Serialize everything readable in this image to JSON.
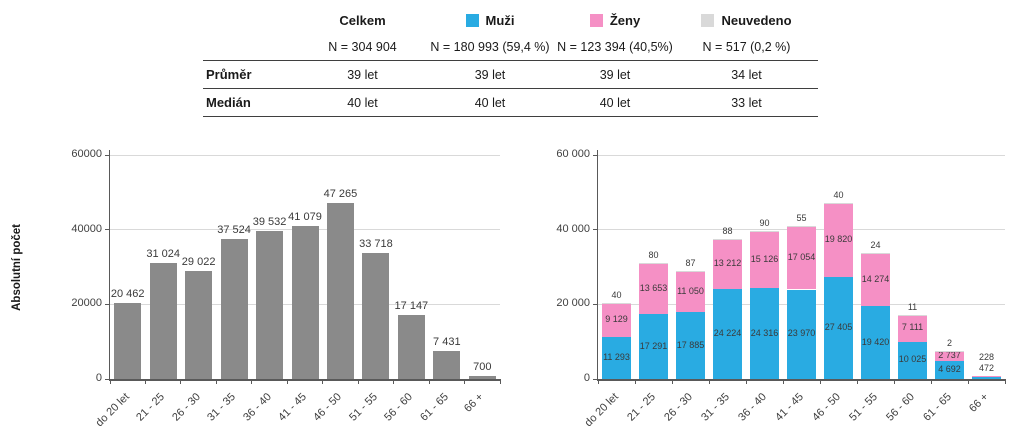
{
  "colors": {
    "muzi": "#29ABE2",
    "zeny": "#F590C5",
    "neuvedeno": "#D9D9D9",
    "total_gray": "#8A8A8A"
  },
  "table": {
    "col_headers": [
      {
        "label": "Celkem",
        "swatch": null
      },
      {
        "label": "Muži",
        "swatch": "#29ABE2"
      },
      {
        "label": "Ženy",
        "swatch": "#F590C5"
      },
      {
        "label": "Neuvedeno",
        "swatch": "#D9D9D9"
      }
    ],
    "n_row": [
      "N = 304 904",
      "N = 180 993 (59,4 %)",
      "N = 123 394 (40,5%)",
      "N = 517 (0,2 %)"
    ],
    "rows": [
      {
        "label": "Průměr",
        "values": [
          "39 let",
          "39 let",
          "39 let",
          "34 let"
        ]
      },
      {
        "label": "Medián",
        "values": [
          "40 let",
          "40 let",
          "40 let",
          "33 let"
        ]
      }
    ]
  },
  "chart_data": [
    {
      "type": "bar",
      "title": "",
      "ylabel": "Absolutní počet",
      "xlabel": "",
      "categories": [
        "do 20 let",
        "21 - 25",
        "26 - 30",
        "31 - 35",
        "36 - 40",
        "41 - 45",
        "46 - 50",
        "51 - 55",
        "56 - 60",
        "61 - 65",
        "66 +"
      ],
      "values": [
        20462,
        31024,
        29022,
        37524,
        39532,
        41079,
        47265,
        33718,
        17147,
        7431,
        700
      ],
      "labels": [
        "20 462",
        "31 024",
        "29 022",
        "37 524",
        "39 532",
        "41 079",
        "47 265",
        "33 718",
        "17 147",
        "7 431",
        "700"
      ],
      "bar_color": "#8A8A8A",
      "ylim": [
        0,
        60000
      ],
      "yticks": [
        0,
        20000,
        40000,
        60000
      ],
      "ytick_labels": [
        "0",
        "20000",
        "40000",
        "60000"
      ],
      "grid": true,
      "legend": "none"
    },
    {
      "type": "bar",
      "stacked": true,
      "title": "",
      "ylabel": "",
      "xlabel": "",
      "categories": [
        "do 20 let",
        "21 - 25",
        "26 - 30",
        "31 - 35",
        "36 - 40",
        "41 - 45",
        "46 - 50",
        "51 - 55",
        "56 - 60",
        "61 - 65",
        "66 +"
      ],
      "series": [
        {
          "key": "muzi",
          "name": "Muži",
          "color": "#29ABE2",
          "values": [
            11293,
            17291,
            17885,
            24224,
            24316,
            23970,
            27405,
            19420,
            10025,
            4692,
            472
          ],
          "labels": [
            "11 293",
            "17 291",
            "17 885",
            "24 224",
            "24 316",
            "23 970",
            "27 405",
            "19 420",
            "10 025",
            "4 692",
            "472"
          ]
        },
        {
          "key": "zeny",
          "name": "Ženy",
          "color": "#F590C5",
          "values": [
            9129,
            13653,
            11050,
            13212,
            15126,
            17054,
            19820,
            14274,
            7111,
            2737,
            228
          ],
          "labels": [
            "9 129",
            "13 653",
            "11 050",
            "13 212",
            "15 126",
            "17 054",
            "19 820",
            "14 274",
            "7 111",
            "2 737",
            "228"
          ]
        },
        {
          "key": "neuvedeno",
          "name": "Neuvedeno",
          "color": "#D9D9D9",
          "values": [
            40,
            80,
            87,
            88,
            90,
            55,
            40,
            24,
            11,
            2,
            0
          ],
          "labels": [
            "40",
            "80",
            "87",
            "88",
            "90",
            "55",
            "40",
            "24",
            "11",
            "2",
            ""
          ]
        }
      ],
      "ylim": [
        0,
        60000
      ],
      "yticks": [
        0,
        20000,
        40000,
        60000
      ],
      "ytick_labels": [
        "0",
        "20 000",
        "40 000",
        "60 000"
      ],
      "grid": true,
      "legend": "table-header"
    }
  ]
}
